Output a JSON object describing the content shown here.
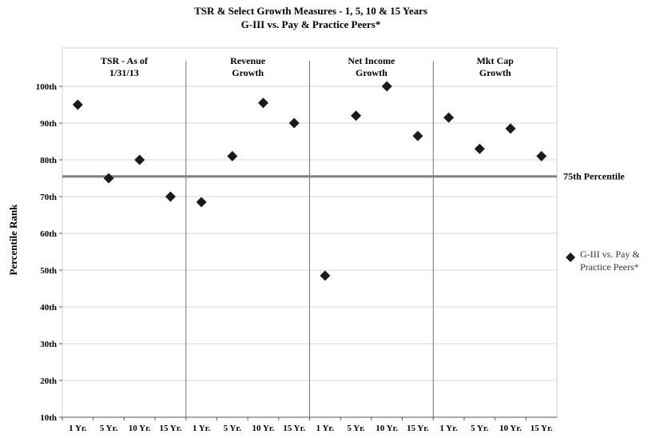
{
  "chart_data": {
    "type": "scatter",
    "title": "TSR & Select Growth Measures - 1, 5, 10 & 15 Years",
    "subtitle": "G-III vs. Pay & Practice Peers*",
    "ylabel": "Percentile Rank",
    "ylim": [
      10,
      100
    ],
    "y_ticks": [
      "10th",
      "20th",
      "30th",
      "40th",
      "50th",
      "60th",
      "70th",
      "80th",
      "90th",
      "100th"
    ],
    "grid": true,
    "groups": [
      {
        "label_lines": [
          "TSR - As of",
          "1/31/13"
        ],
        "x_labels": [
          "1 Yr.",
          "5 Yr.",
          "10 Yr.",
          "15 Yr."
        ],
        "values": [
          95,
          75,
          80,
          70
        ]
      },
      {
        "label_lines": [
          "Revenue",
          "Growth"
        ],
        "x_labels": [
          "1 Yr.",
          "5 Yr.",
          "10 Yr.",
          "15 Yr."
        ],
        "values": [
          68.5,
          81,
          95.5,
          90
        ]
      },
      {
        "label_lines": [
          "Net Income",
          "Growth"
        ],
        "x_labels": [
          "1 Yr.",
          "5 Yr.",
          "10 Yr.",
          "15 Yr."
        ],
        "values": [
          48.5,
          92,
          100,
          86.5
        ]
      },
      {
        "label_lines": [
          "Mkt Cap",
          "Growth"
        ],
        "x_labels": [
          "1 Yr.",
          "5 Yr.",
          "10 Yr.",
          "15 Yr."
        ],
        "values": [
          91.5,
          83,
          88.5,
          81
        ]
      }
    ],
    "reference_line": {
      "value": 75.5,
      "label": "75th Percentile"
    },
    "series": [
      {
        "name": "G-III vs. Pay & Practice Peers*"
      }
    ],
    "legend_lines": [
      "G-III vs. Pay &",
      "Practice Peers*"
    ],
    "legend_position": "right",
    "colors": {
      "marker": "#1a1a1a",
      "reference_line": "#808080",
      "grid": "#d4d4d4",
      "divider": "#777777"
    }
  }
}
